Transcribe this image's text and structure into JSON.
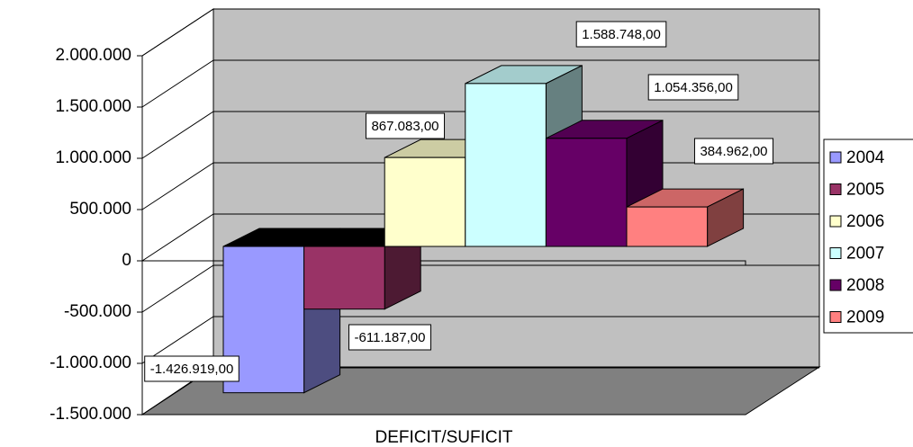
{
  "chart_data": {
    "type": "bar3d",
    "categories": [
      "DEFICIT/SUFICIT"
    ],
    "series": [
      {
        "name": "2004",
        "color": "#9999ff",
        "values": [
          -1426919
        ],
        "value_labels": [
          "-1.426.919,00"
        ]
      },
      {
        "name": "2005",
        "color": "#993366",
        "values": [
          -611187
        ],
        "value_labels": [
          "-611.187,00"
        ]
      },
      {
        "name": "2006",
        "color": "#ffffcc",
        "values": [
          867083
        ],
        "value_labels": [
          "867.083,00"
        ]
      },
      {
        "name": "2007",
        "color": "#ccffff",
        "values": [
          1588748
        ],
        "value_labels": [
          "1.588.748,00"
        ]
      },
      {
        "name": "2008",
        "color": "#660066",
        "values": [
          1054356
        ],
        "value_labels": [
          "1.054.356,00"
        ]
      },
      {
        "name": "2009",
        "color": "#ff8080",
        "values": [
          384962
        ],
        "value_labels": [
          "384.962,00"
        ]
      }
    ],
    "ylim": [
      -1500000,
      2000000
    ],
    "yticks": [
      {
        "value": -1500000,
        "label": "-1.500.000"
      },
      {
        "value": -1000000,
        "label": "-1.000.000"
      },
      {
        "value": -500000,
        "label": "-500.000"
      },
      0,
      {
        "value": 500000,
        "label": "500.000"
      },
      {
        "value": 1000000,
        "label": "1.000.000"
      },
      {
        "value": 1500000,
        "label": "1.500.000"
      },
      {
        "value": 2000000,
        "label": "2.000.000"
      }
    ],
    "grid": true,
    "legend": "right"
  }
}
